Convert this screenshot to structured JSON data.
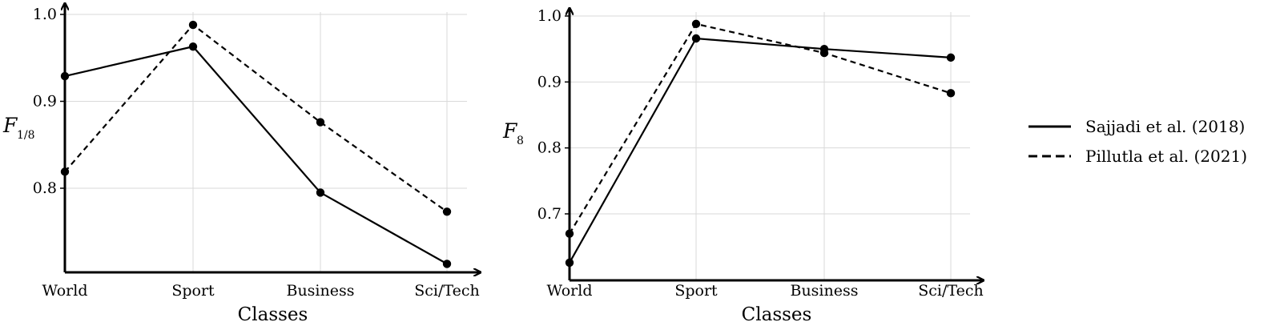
{
  "chart_data": [
    {
      "type": "line",
      "categories": [
        "World",
        "Sport",
        "Business",
        "Sci/Tech"
      ],
      "xlabel": "Classes",
      "ylabel": "F",
      "ylabel_sub": "1/8",
      "ylim": [
        0.7,
        1.0
      ],
      "yticks": [
        "0.8",
        "0.9",
        "1.0"
      ],
      "grid": true,
      "series": [
        {
          "name": "Sajjadi et al. (2018)",
          "style": "solid",
          "values": [
            0.929,
            0.963,
            0.795,
            0.713
          ]
        },
        {
          "name": "Pillutla et al. (2021)",
          "style": "dashed",
          "values": [
            0.819,
            0.988,
            0.876,
            0.773
          ]
        }
      ]
    },
    {
      "type": "line",
      "categories": [
        "World",
        "Sport",
        "Business",
        "Sci/Tech"
      ],
      "xlabel": "Classes",
      "ylabel": "F",
      "ylabel_sub": "8",
      "ylim": [
        0.6,
        1.0
      ],
      "yticks": [
        "0.7",
        "0.8",
        "0.9",
        "1.0"
      ],
      "grid": true,
      "series": [
        {
          "name": "Sajjadi et al. (2018)",
          "style": "solid",
          "values": [
            0.626,
            0.966,
            0.95,
            0.937
          ]
        },
        {
          "name": "Pillutla et al. (2021)",
          "style": "dashed",
          "values": [
            0.67,
            0.988,
            0.944,
            0.883
          ]
        }
      ]
    }
  ],
  "legend": {
    "position": "right",
    "items": [
      {
        "label": "Sajjadi et al. (2018)",
        "style": "solid"
      },
      {
        "label": "Pillutla et al. (2021)",
        "style": "dashed"
      }
    ]
  }
}
